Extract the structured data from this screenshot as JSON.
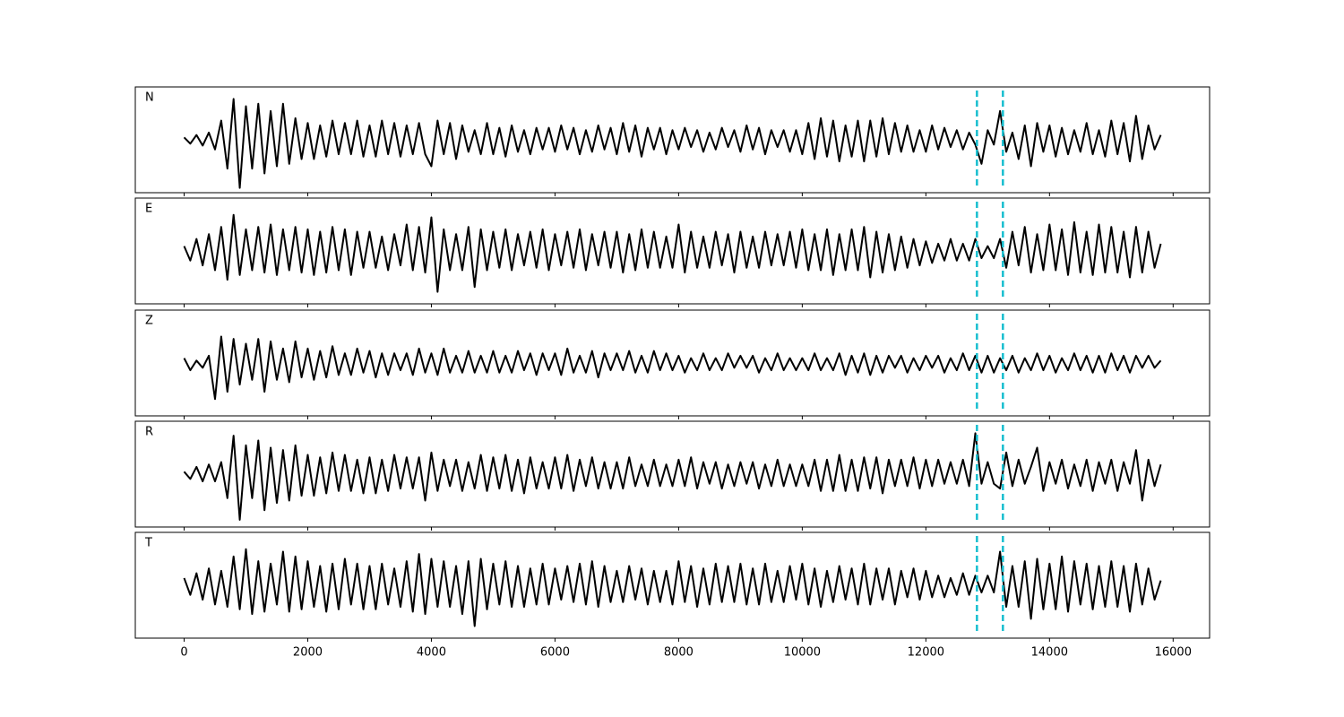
{
  "chart_data": {
    "type": "line",
    "stacked_panels": true,
    "line_color": "#000000",
    "x": [
      0,
      100,
      200,
      300,
      400,
      500,
      600,
      700,
      800,
      900,
      1000,
      1100,
      1200,
      1300,
      1400,
      1500,
      1600,
      1700,
      1800,
      1900,
      2000,
      2100,
      2200,
      2300,
      2400,
      2500,
      2600,
      2700,
      2800,
      2900,
      3000,
      3100,
      3200,
      3300,
      3400,
      3500,
      3600,
      3700,
      3800,
      3900,
      4000,
      4100,
      4200,
      4300,
      4400,
      4500,
      4600,
      4700,
      4800,
      4900,
      5000,
      5100,
      5200,
      5300,
      5400,
      5500,
      5600,
      5700,
      5800,
      5900,
      6000,
      6100,
      6200,
      6300,
      6400,
      6500,
      6600,
      6700,
      6800,
      6900,
      7000,
      7100,
      7200,
      7300,
      7400,
      7500,
      7600,
      7700,
      7800,
      7900,
      8000,
      8100,
      8200,
      8300,
      8400,
      8500,
      8600,
      8700,
      8800,
      8900,
      9000,
      9100,
      9200,
      9300,
      9400,
      9500,
      9600,
      9700,
      9800,
      9900,
      10000,
      10100,
      10200,
      10300,
      10400,
      10500,
      10600,
      10700,
      10800,
      10900,
      11000,
      11100,
      11200,
      11300,
      11400,
      11500,
      11600,
      11700,
      11800,
      11900,
      12000,
      12100,
      12200,
      12300,
      12400,
      12500,
      12600,
      12700,
      12800,
      12900,
      13000,
      13100,
      13200,
      13300,
      13400,
      13500,
      13600,
      13700,
      13800,
      13900,
      14000,
      14100,
      14200,
      14300,
      14400,
      14500,
      14600,
      14700,
      14800,
      14900,
      15000,
      15100,
      15200,
      15300,
      15400,
      15500,
      15600,
      15700,
      15800
    ],
    "xlim": [
      -790,
      16590
    ],
    "xticks": [
      0,
      2000,
      4000,
      6000,
      8000,
      10000,
      12000,
      14000,
      16000
    ],
    "ylim": [
      -110,
      110
    ],
    "vlines": [
      12826,
      13246
    ],
    "vline_color": "#17becf",
    "series": [
      {
        "name": "N",
        "values": [
          5,
          -8,
          10,
          -12,
          15,
          -20,
          40,
          -60,
          85,
          -100,
          70,
          -60,
          75,
          -70,
          60,
          -55,
          75,
          -50,
          45,
          -40,
          35,
          -40,
          30,
          -35,
          40,
          -30,
          35,
          -30,
          40,
          -35,
          30,
          -35,
          40,
          -30,
          35,
          -35,
          30,
          -30,
          35,
          -30,
          -55,
          40,
          -30,
          35,
          -40,
          30,
          -25,
          20,
          -30,
          35,
          -30,
          25,
          -35,
          30,
          -25,
          20,
          -30,
          25,
          -20,
          25,
          -25,
          30,
          -20,
          25,
          -30,
          20,
          -25,
          30,
          -20,
          25,
          -30,
          35,
          -25,
          30,
          -35,
          25,
          -20,
          25,
          -30,
          20,
          -20,
          25,
          -15,
          20,
          -25,
          15,
          -20,
          25,
          -15,
          20,
          -25,
          30,
          -20,
          25,
          -30,
          20,
          -15,
          20,
          -25,
          20,
          -30,
          35,
          -40,
          45,
          -35,
          40,
          -45,
          30,
          -35,
          40,
          -45,
          40,
          -35,
          45,
          -30,
          35,
          -25,
          30,
          -25,
          20,
          -25,
          30,
          -20,
          25,
          -15,
          20,
          -20,
          15,
          -10,
          -50,
          20,
          -10,
          60,
          -25,
          15,
          -40,
          30,
          -55,
          35,
          -25,
          30,
          -35,
          25,
          -30,
          20,
          -25,
          35,
          -30,
          20,
          -35,
          40,
          -30,
          35,
          -45,
          50,
          -40,
          30,
          -20,
          10
        ]
      },
      {
        "name": "E",
        "values": [
          10,
          -20,
          25,
          -30,
          35,
          -40,
          50,
          -60,
          75,
          -50,
          45,
          -40,
          50,
          -45,
          55,
          -50,
          45,
          -40,
          50,
          -45,
          45,
          -50,
          40,
          -45,
          50,
          -40,
          45,
          -50,
          40,
          -35,
          40,
          -35,
          30,
          -40,
          35,
          -30,
          55,
          -40,
          50,
          -45,
          70,
          -85,
          45,
          -40,
          35,
          -40,
          50,
          -75,
          45,
          -40,
          40,
          -35,
          45,
          -40,
          35,
          -30,
          40,
          -35,
          45,
          -40,
          35,
          -30,
          40,
          -35,
          45,
          -40,
          35,
          -30,
          40,
          -35,
          40,
          -45,
          35,
          -40,
          45,
          -35,
          40,
          -35,
          30,
          -35,
          55,
          -45,
          40,
          -35,
          30,
          -35,
          40,
          -30,
          35,
          -45,
          40,
          -35,
          30,
          -35,
          40,
          -30,
          35,
          -30,
          40,
          -35,
          45,
          -40,
          35,
          -40,
          45,
          -50,
          35,
          -40,
          45,
          -40,
          50,
          -55,
          40,
          -45,
          35,
          -40,
          30,
          -35,
          25,
          -30,
          20,
          -25,
          15,
          -20,
          25,
          -20,
          15,
          -20,
          25,
          -15,
          10,
          -15,
          25,
          -35,
          40,
          -30,
          50,
          -45,
          35,
          -40,
          55,
          -40,
          45,
          -50,
          60,
          -45,
          40,
          -50,
          55,
          -45,
          50,
          -45,
          40,
          -55,
          50,
          -45,
          40,
          -35,
          15
        ]
      },
      {
        "name": "Z",
        "values": [
          10,
          -15,
          5,
          -10,
          15,
          -75,
          55,
          -60,
          50,
          -45,
          40,
          -35,
          50,
          -60,
          45,
          -35,
          30,
          -40,
          45,
          -30,
          30,
          -35,
          25,
          -30,
          35,
          -25,
          20,
          -25,
          30,
          -20,
          25,
          -30,
          20,
          -25,
          20,
          -15,
          20,
          -25,
          30,
          -20,
          20,
          -25,
          30,
          -20,
          15,
          -20,
          25,
          -20,
          15,
          -20,
          25,
          -20,
          15,
          -20,
          25,
          -15,
          20,
          -25,
          20,
          -15,
          20,
          -25,
          30,
          -20,
          15,
          -20,
          25,
          -30,
          20,
          -15,
          20,
          -15,
          25,
          -20,
          15,
          -20,
          25,
          -15,
          20,
          -15,
          15,
          -20,
          10,
          -15,
          20,
          -15,
          10,
          -15,
          20,
          -10,
          15,
          -10,
          15,
          -20,
          10,
          -15,
          20,
          -15,
          10,
          -15,
          10,
          -15,
          20,
          -15,
          10,
          -15,
          20,
          -25,
          15,
          -20,
          20,
          -25,
          15,
          -20,
          15,
          -10,
          15,
          -20,
          10,
          -15,
          15,
          -10,
          15,
          -20,
          10,
          -15,
          20,
          -15,
          15,
          -20,
          15,
          -20,
          10,
          -15,
          15,
          -20,
          10,
          -15,
          20,
          -15,
          15,
          -20,
          10,
          -15,
          20,
          -15,
          15,
          -20,
          15,
          -20,
          20,
          -15,
          15,
          -20,
          15,
          -10,
          15,
          -10,
          5
        ]
      },
      {
        "name": "R",
        "values": [
          5,
          -10,
          15,
          -15,
          20,
          -15,
          25,
          -50,
          80,
          -95,
          60,
          -50,
          70,
          -75,
          55,
          -60,
          50,
          -55,
          60,
          -45,
          40,
          -45,
          35,
          -40,
          45,
          -35,
          40,
          -35,
          30,
          -40,
          35,
          -40,
          30,
          -35,
          40,
          -30,
          35,
          -30,
          35,
          -55,
          45,
          -35,
          30,
          -25,
          30,
          -35,
          25,
          -30,
          40,
          -35,
          35,
          -30,
          40,
          -35,
          30,
          -40,
          35,
          -30,
          25,
          -30,
          35,
          -30,
          40,
          -35,
          30,
          -25,
          35,
          -30,
          25,
          -30,
          25,
          -30,
          35,
          -25,
          20,
          -25,
          30,
          -25,
          20,
          -25,
          30,
          -25,
          35,
          -30,
          25,
          -20,
          25,
          -30,
          20,
          -25,
          25,
          -20,
          25,
          -30,
          20,
          -25,
          30,
          -25,
          20,
          -25,
          20,
          -25,
          30,
          -35,
          30,
          -35,
          40,
          -35,
          30,
          -35,
          35,
          -30,
          35,
          -40,
          30,
          -25,
          30,
          -25,
          35,
          -30,
          30,
          -25,
          30,
          -20,
          25,
          -20,
          30,
          -25,
          85,
          -20,
          25,
          -20,
          -30,
          45,
          -25,
          30,
          -20,
          15,
          55,
          -35,
          25,
          -20,
          30,
          -30,
          20,
          -25,
          30,
          -35,
          25,
          -20,
          30,
          -35,
          25,
          -20,
          50,
          -55,
          30,
          -25,
          20
        ]
      },
      {
        "name": "T",
        "values": [
          15,
          -20,
          25,
          -30,
          35,
          -40,
          30,
          -45,
          60,
          -50,
          75,
          -60,
          50,
          -55,
          45,
          -40,
          70,
          -55,
          60,
          -50,
          50,
          -45,
          40,
          -55,
          45,
          -50,
          55,
          -40,
          45,
          -50,
          40,
          -50,
          45,
          -40,
          35,
          -45,
          50,
          -55,
          65,
          -60,
          55,
          -45,
          50,
          -45,
          40,
          -60,
          50,
          -85,
          55,
          -50,
          45,
          -40,
          50,
          -45,
          40,
          -45,
          35,
          -40,
          45,
          -40,
          35,
          -30,
          40,
          -35,
          45,
          -40,
          50,
          -45,
          40,
          -35,
          30,
          -35,
          40,
          -30,
          35,
          -40,
          30,
          -35,
          30,
          -40,
          50,
          -35,
          40,
          -45,
          35,
          -40,
          45,
          -35,
          40,
          -35,
          45,
          -40,
          35,
          -40,
          45,
          -35,
          30,
          -35,
          40,
          -30,
          45,
          -40,
          35,
          -45,
          30,
          -35,
          40,
          -30,
          35,
          -40,
          45,
          -40,
          35,
          -30,
          35,
          -40,
          30,
          -25,
          35,
          -30,
          30,
          -25,
          20,
          -25,
          15,
          -20,
          25,
          -20,
          20,
          -15,
          20,
          -15,
          70,
          -45,
          40,
          -45,
          50,
          -70,
          55,
          -50,
          45,
          -50,
          60,
          -55,
          50,
          -40,
          45,
          -50,
          40,
          -45,
          50,
          -45,
          40,
          -55,
          45,
          -40,
          35,
          -30,
          10
        ]
      }
    ]
  }
}
